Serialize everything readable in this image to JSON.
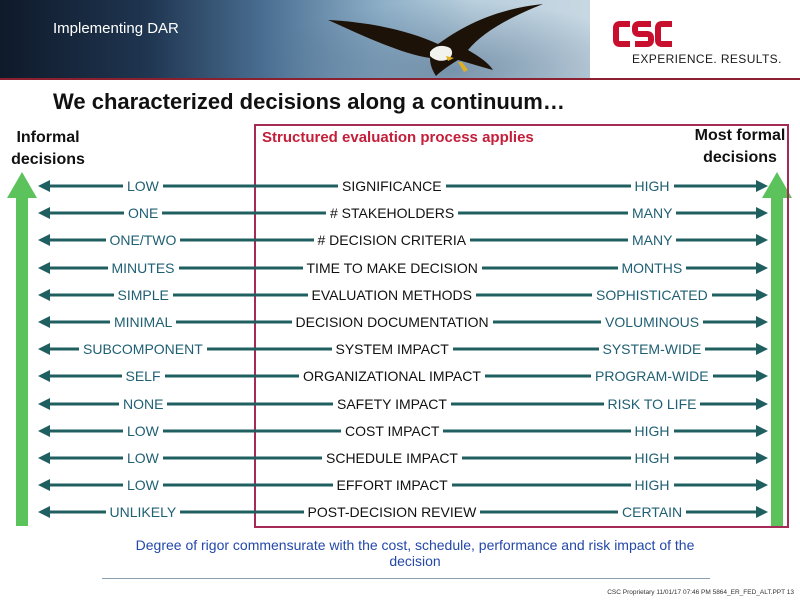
{
  "header": {
    "title": "Implementing DAR",
    "logo_text": "CSC",
    "tagline": "EXPERIENCE. RESULTS."
  },
  "slide": {
    "title": "We characterized decisions along a continuum…",
    "left_caption": "Informal decisions",
    "right_caption": "Most formal decisions",
    "box_title": "Structured evaluation process applies",
    "rows": [
      {
        "left": "LOW",
        "middle": "SIGNIFICANCE",
        "right": "HIGH"
      },
      {
        "left": "ONE",
        "middle": "# STAKEHOLDERS",
        "right": "MANY"
      },
      {
        "left": "ONE/TWO",
        "middle": "# DECISION CRITERIA",
        "right": "MANY"
      },
      {
        "left": "MINUTES",
        "middle": "TIME TO MAKE DECISION",
        "right": "MONTHS"
      },
      {
        "left": "SIMPLE",
        "middle": "EVALUATION METHODS",
        "right": "SOPHISTICATED"
      },
      {
        "left": "MINIMAL",
        "middle": "DECISION DOCUMENTATION",
        "right": "VOLUMINOUS"
      },
      {
        "left": "SUBCOMPONENT",
        "middle": "SYSTEM IMPACT",
        "right": "SYSTEM-WIDE"
      },
      {
        "left": "SELF",
        "middle": "ORGANIZATIONAL IMPACT",
        "right": "PROGRAM-WIDE"
      },
      {
        "left": "NONE",
        "middle": "SAFETY IMPACT",
        "right": "RISK TO LIFE"
      },
      {
        "left": "LOW",
        "middle": "COST IMPACT",
        "right": "HIGH"
      },
      {
        "left": "LOW",
        "middle": "SCHEDULE IMPACT",
        "right": "HIGH"
      },
      {
        "left": "LOW",
        "middle": "EFFORT IMPACT",
        "right": "HIGH"
      },
      {
        "left": "UNLIKELY",
        "middle": "POST-DECISION REVIEW",
        "right": "CERTAIN"
      }
    ],
    "footnote": "Degree of rigor commensurate with the cost, schedule, performance and risk impact of the decision",
    "legal": "CSC Proprietary 11/01/17 07:46 PM 5864_ER_FED_ALT.PPT 13"
  },
  "colors": {
    "arrow_teal": "#1f5f60",
    "big_arrow_green": "#5cc35c",
    "box_border": "#a52a55",
    "box_title": "#c41e3a",
    "footnote": "#2348a8",
    "logo_red": "#c8102e"
  },
  "icons": {
    "eagle": "eagle-photo",
    "logo": "csc-logo"
  }
}
